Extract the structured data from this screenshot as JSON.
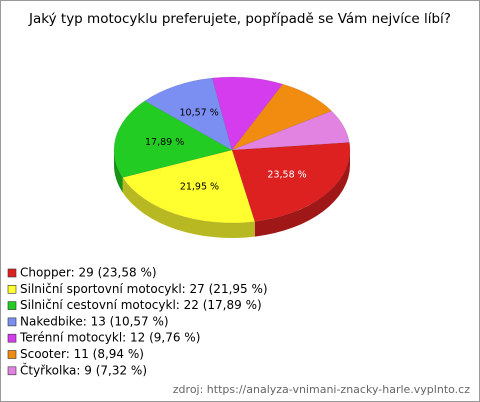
{
  "chart_data": {
    "type": "pie",
    "title": "Jaký typ motocyklu preferujete, popřípadě se Vám nejvíce líbí?",
    "categories": [
      "Chopper",
      "Silniční sportovní motocykl",
      "Silniční cestovní motocykl",
      "Nakedbike",
      "Terénní motocykl",
      "Scooter",
      "Čtyřkolka"
    ],
    "values": [
      29,
      27,
      22,
      13,
      12,
      11,
      9
    ],
    "value_labels": [
      "23,58 %",
      "21,95 %",
      "17,89 %",
      "10,57 %",
      null,
      null,
      null
    ],
    "legend_labels": [
      "Chopper: 29 (23,58 %)",
      "Silniční sportovní motocykl: 27 (21,95 %)",
      "Silniční cestovní motocykl: 22 (17,89 %)",
      "Nakedbike: 13 (10,57 %)",
      "Terénní motocykl: 12 (9,76 %)",
      "Scooter: 11 (8,94 %)",
      "Čtyřkolka: 9 (7,32 %)"
    ],
    "colors": [
      "#dd2020",
      "#ffff30",
      "#22cc22",
      "#7b8ff2",
      "#d43cee",
      "#f28c10",
      "#e283e2"
    ],
    "source": "zdroj: https://analyza-vnimani-znacky-harle.vyplnto.cz"
  }
}
